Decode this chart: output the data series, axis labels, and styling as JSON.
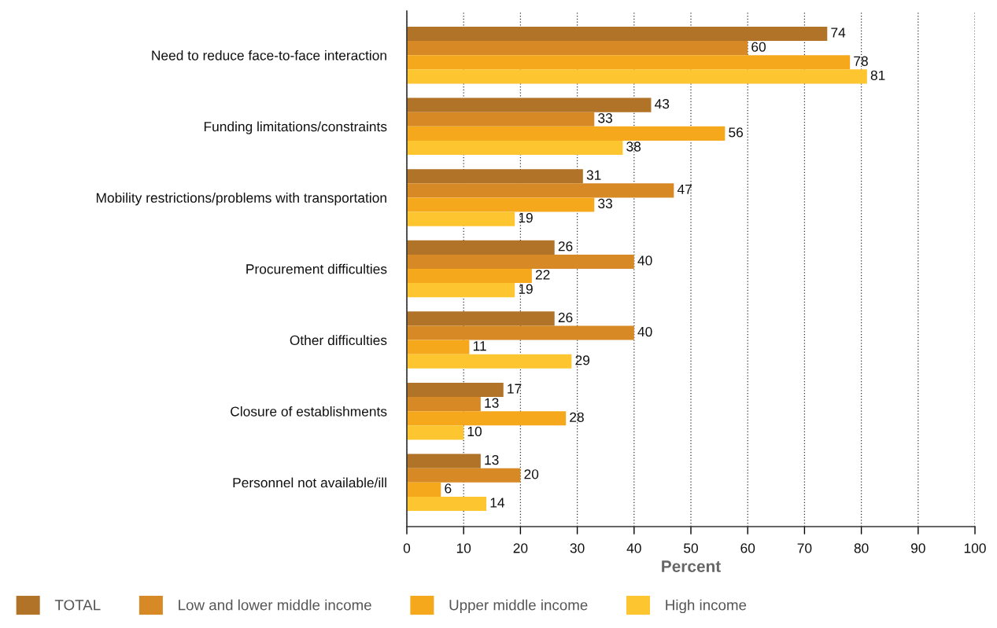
{
  "chart_data": {
    "type": "bar",
    "orientation": "horizontal",
    "categories": [
      "Need to reduce face-to-face interaction",
      "Funding limitations/constraints",
      "Mobility restrictions/problems with transportation",
      "Procurement difficulties",
      "Other difficulties",
      "Closure of establishments",
      "Personnel not available/ill"
    ],
    "series": [
      {
        "name": "TOTAL",
        "color": "#b07328",
        "values": [
          74,
          43,
          31,
          26,
          26,
          17,
          13
        ]
      },
      {
        "name": "Low and lower middle income",
        "color": "#d68924",
        "values": [
          60,
          33,
          47,
          40,
          40,
          13,
          20
        ]
      },
      {
        "name": "Upper middle income",
        "color": "#f5a81c",
        "values": [
          78,
          56,
          33,
          22,
          11,
          28,
          6
        ]
      },
      {
        "name": "High income",
        "color": "#fdc530",
        "values": [
          81,
          38,
          19,
          19,
          29,
          10,
          14
        ]
      }
    ],
    "xlabel": "Percent",
    "xlim": [
      0,
      100
    ],
    "xticks": [
      0,
      10,
      20,
      30,
      40,
      50,
      60,
      70,
      80,
      90,
      100
    ],
    "grid": "x",
    "legend": "bottom",
    "data_labels": true
  }
}
